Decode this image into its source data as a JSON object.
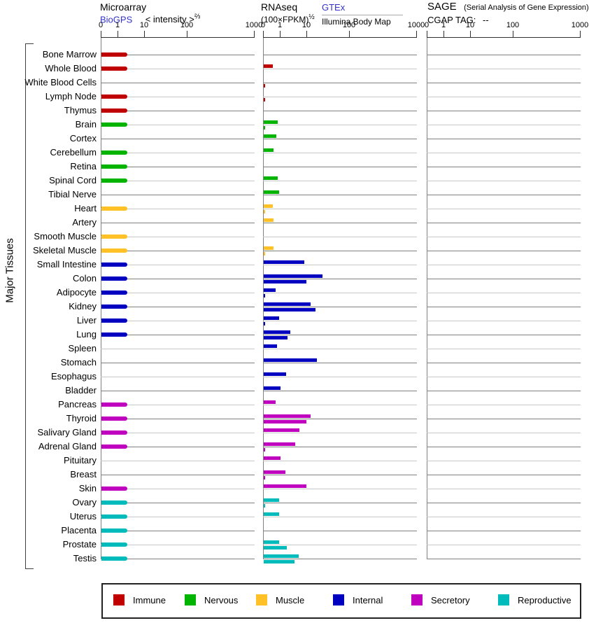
{
  "header": {
    "col1": {
      "title": "Microarray",
      "link": "BioGPS",
      "scale_label": "< intensity >",
      "scale_exp": "⅔"
    },
    "col2": {
      "title": "RNAseq",
      "scale_label": "(100×FPKM)",
      "scale_exp": "½",
      "link": "GTEx",
      "sublabel": "Illumina Body Map"
    },
    "col3": {
      "title": "SAGE",
      "subtitle": "(Serial Analysis of Gene Expression)",
      "tag_label": "CGAP TAG:",
      "tag_value": "--"
    }
  },
  "side_label": "Major Tissues",
  "axis": {
    "ticks": [
      "0",
      "1",
      "10",
      "100",
      "1000"
    ]
  },
  "legend": [
    {
      "label": "Immune",
      "color": "#C00000"
    },
    {
      "label": "Nervous",
      "color": "#00B400"
    },
    {
      "label": "Muscle",
      "color": "#FFC125"
    },
    {
      "label": "Internal",
      "color": "#0000C0"
    },
    {
      "label": "Secretory",
      "color": "#BF00BF"
    },
    {
      "label": "Reproductive",
      "color": "#00BBBB"
    }
  ],
  "chart_data": {
    "type": "bar",
    "orientation": "horizontal",
    "panels": [
      "Microarray (BioGPS)",
      "RNAseq (GTEx / Illumina Body Map)",
      "SAGE (CGAP TAG: --)"
    ],
    "axis_ticks": [
      0,
      1,
      10,
      100,
      1000
    ],
    "xlim": [
      0,
      1000
    ],
    "note": "Each tissue row: microarray = BioGPS intensity^(2/3); gtex and illumina = RNAseq (100×FPKM)^(1/2); SAGE panel has no data (TAG: --). null = no bar shown.",
    "tissues": [
      {
        "name": "Bone Marrow",
        "category": "Immune",
        "microarray": 2.2,
        "gtex": null,
        "illumina": null
      },
      {
        "name": "Whole Blood",
        "category": "Immune",
        "microarray": 2.2,
        "gtex": 0.55,
        "illumina": null
      },
      {
        "name": "White Blood Cells",
        "category": "Immune",
        "microarray": null,
        "gtex": null,
        "illumina": 0.08
      },
      {
        "name": "Lymph Node",
        "category": "Immune",
        "microarray": 2.2,
        "gtex": null,
        "illumina": 0.08
      },
      {
        "name": "Thymus",
        "category": "Immune",
        "microarray": 2.2,
        "gtex": null,
        "illumina": null
      },
      {
        "name": "Brain",
        "category": "Nervous",
        "microarray": 2.2,
        "gtex": 0.85,
        "illumina": 0.08
      },
      {
        "name": "Cortex",
        "category": "Nervous",
        "microarray": null,
        "gtex": 0.75,
        "illumina": null
      },
      {
        "name": "Cerebellum",
        "category": "Nervous",
        "microarray": 2.2,
        "gtex": 0.6,
        "illumina": null
      },
      {
        "name": "Retina",
        "category": "Nervous",
        "microarray": 2.2,
        "gtex": null,
        "illumina": null
      },
      {
        "name": "Spinal Cord",
        "category": "Nervous",
        "microarray": 2.2,
        "gtex": 0.85,
        "illumina": null
      },
      {
        "name": "Tibial Nerve",
        "category": "Nervous",
        "microarray": null,
        "gtex": 0.9,
        "illumina": null
      },
      {
        "name": "Heart",
        "category": "Muscle",
        "microarray": 2.2,
        "gtex": 0.55,
        "illumina": 0.08
      },
      {
        "name": "Artery",
        "category": "Muscle",
        "microarray": null,
        "gtex": 0.6,
        "illumina": null
      },
      {
        "name": "Smooth Muscle",
        "category": "Muscle",
        "microarray": 2.2,
        "gtex": null,
        "illumina": null
      },
      {
        "name": "Skeletal Muscle",
        "category": "Muscle",
        "microarray": 2.2,
        "gtex": 0.6,
        "illumina": 0.08
      },
      {
        "name": "Small Intestine",
        "category": "Internal",
        "microarray": 2.2,
        "gtex": 8,
        "illumina": null
      },
      {
        "name": "Colon",
        "category": "Internal",
        "microarray": 2.2,
        "gtex": 23,
        "illumina": 9.5
      },
      {
        "name": "Adipocyte",
        "category": "Internal",
        "microarray": 2.2,
        "gtex": 0.7,
        "illumina": 0.06
      },
      {
        "name": "Kidney",
        "category": "Internal",
        "microarray": 2.2,
        "gtex": 12,
        "illumina": 16
      },
      {
        "name": "Liver",
        "category": "Internal",
        "microarray": 2.2,
        "gtex": 0.9,
        "illumina": 0.08
      },
      {
        "name": "Lung",
        "category": "Internal",
        "microarray": 2.2,
        "gtex": 2.3,
        "illumina": 1.8
      },
      {
        "name": "Spleen",
        "category": "Internal",
        "microarray": null,
        "gtex": 0.8,
        "illumina": null
      },
      {
        "name": "Stomach",
        "category": "Internal",
        "microarray": null,
        "gtex": 17,
        "illumina": null
      },
      {
        "name": "Esophagus",
        "category": "Internal",
        "microarray": null,
        "gtex": 1.6,
        "illumina": null
      },
      {
        "name": "Bladder",
        "category": "Internal",
        "microarray": null,
        "gtex": 1.0,
        "illumina": null
      },
      {
        "name": "Pancreas",
        "category": "Secretory",
        "microarray": 2.2,
        "gtex": 0.7,
        "illumina": null
      },
      {
        "name": "Thyroid",
        "category": "Secretory",
        "microarray": 2.2,
        "gtex": 12,
        "illumina": 9.5
      },
      {
        "name": "Salivary Gland",
        "category": "Secretory",
        "microarray": 2.2,
        "gtex": 5,
        "illumina": null
      },
      {
        "name": "Adrenal Gland",
        "category": "Secretory",
        "microarray": 2.2,
        "gtex": 3.6,
        "illumina": 0.08
      },
      {
        "name": "Pituitary",
        "category": "Secretory",
        "microarray": null,
        "gtex": 1.0,
        "illumina": null
      },
      {
        "name": "Breast",
        "category": "Secretory",
        "microarray": null,
        "gtex": 1.5,
        "illumina": 0.06
      },
      {
        "name": "Skin",
        "category": "Secretory",
        "microarray": 2.2,
        "gtex": 9.5,
        "illumina": null
      },
      {
        "name": "Ovary",
        "category": "Reproductive",
        "microarray": 2.2,
        "gtex": 0.9,
        "illumina": 0.08
      },
      {
        "name": "Uterus",
        "category": "Reproductive",
        "microarray": 2.2,
        "gtex": 0.9,
        "illumina": null
      },
      {
        "name": "Placenta",
        "category": "Reproductive",
        "microarray": 2.2,
        "gtex": null,
        "illumina": null
      },
      {
        "name": "Prostate",
        "category": "Reproductive",
        "microarray": 2.2,
        "gtex": 0.9,
        "illumina": 1.7
      },
      {
        "name": "Testis",
        "category": "Reproductive",
        "microarray": 2.2,
        "gtex": 4.8,
        "illumina": 3.4
      }
    ]
  }
}
